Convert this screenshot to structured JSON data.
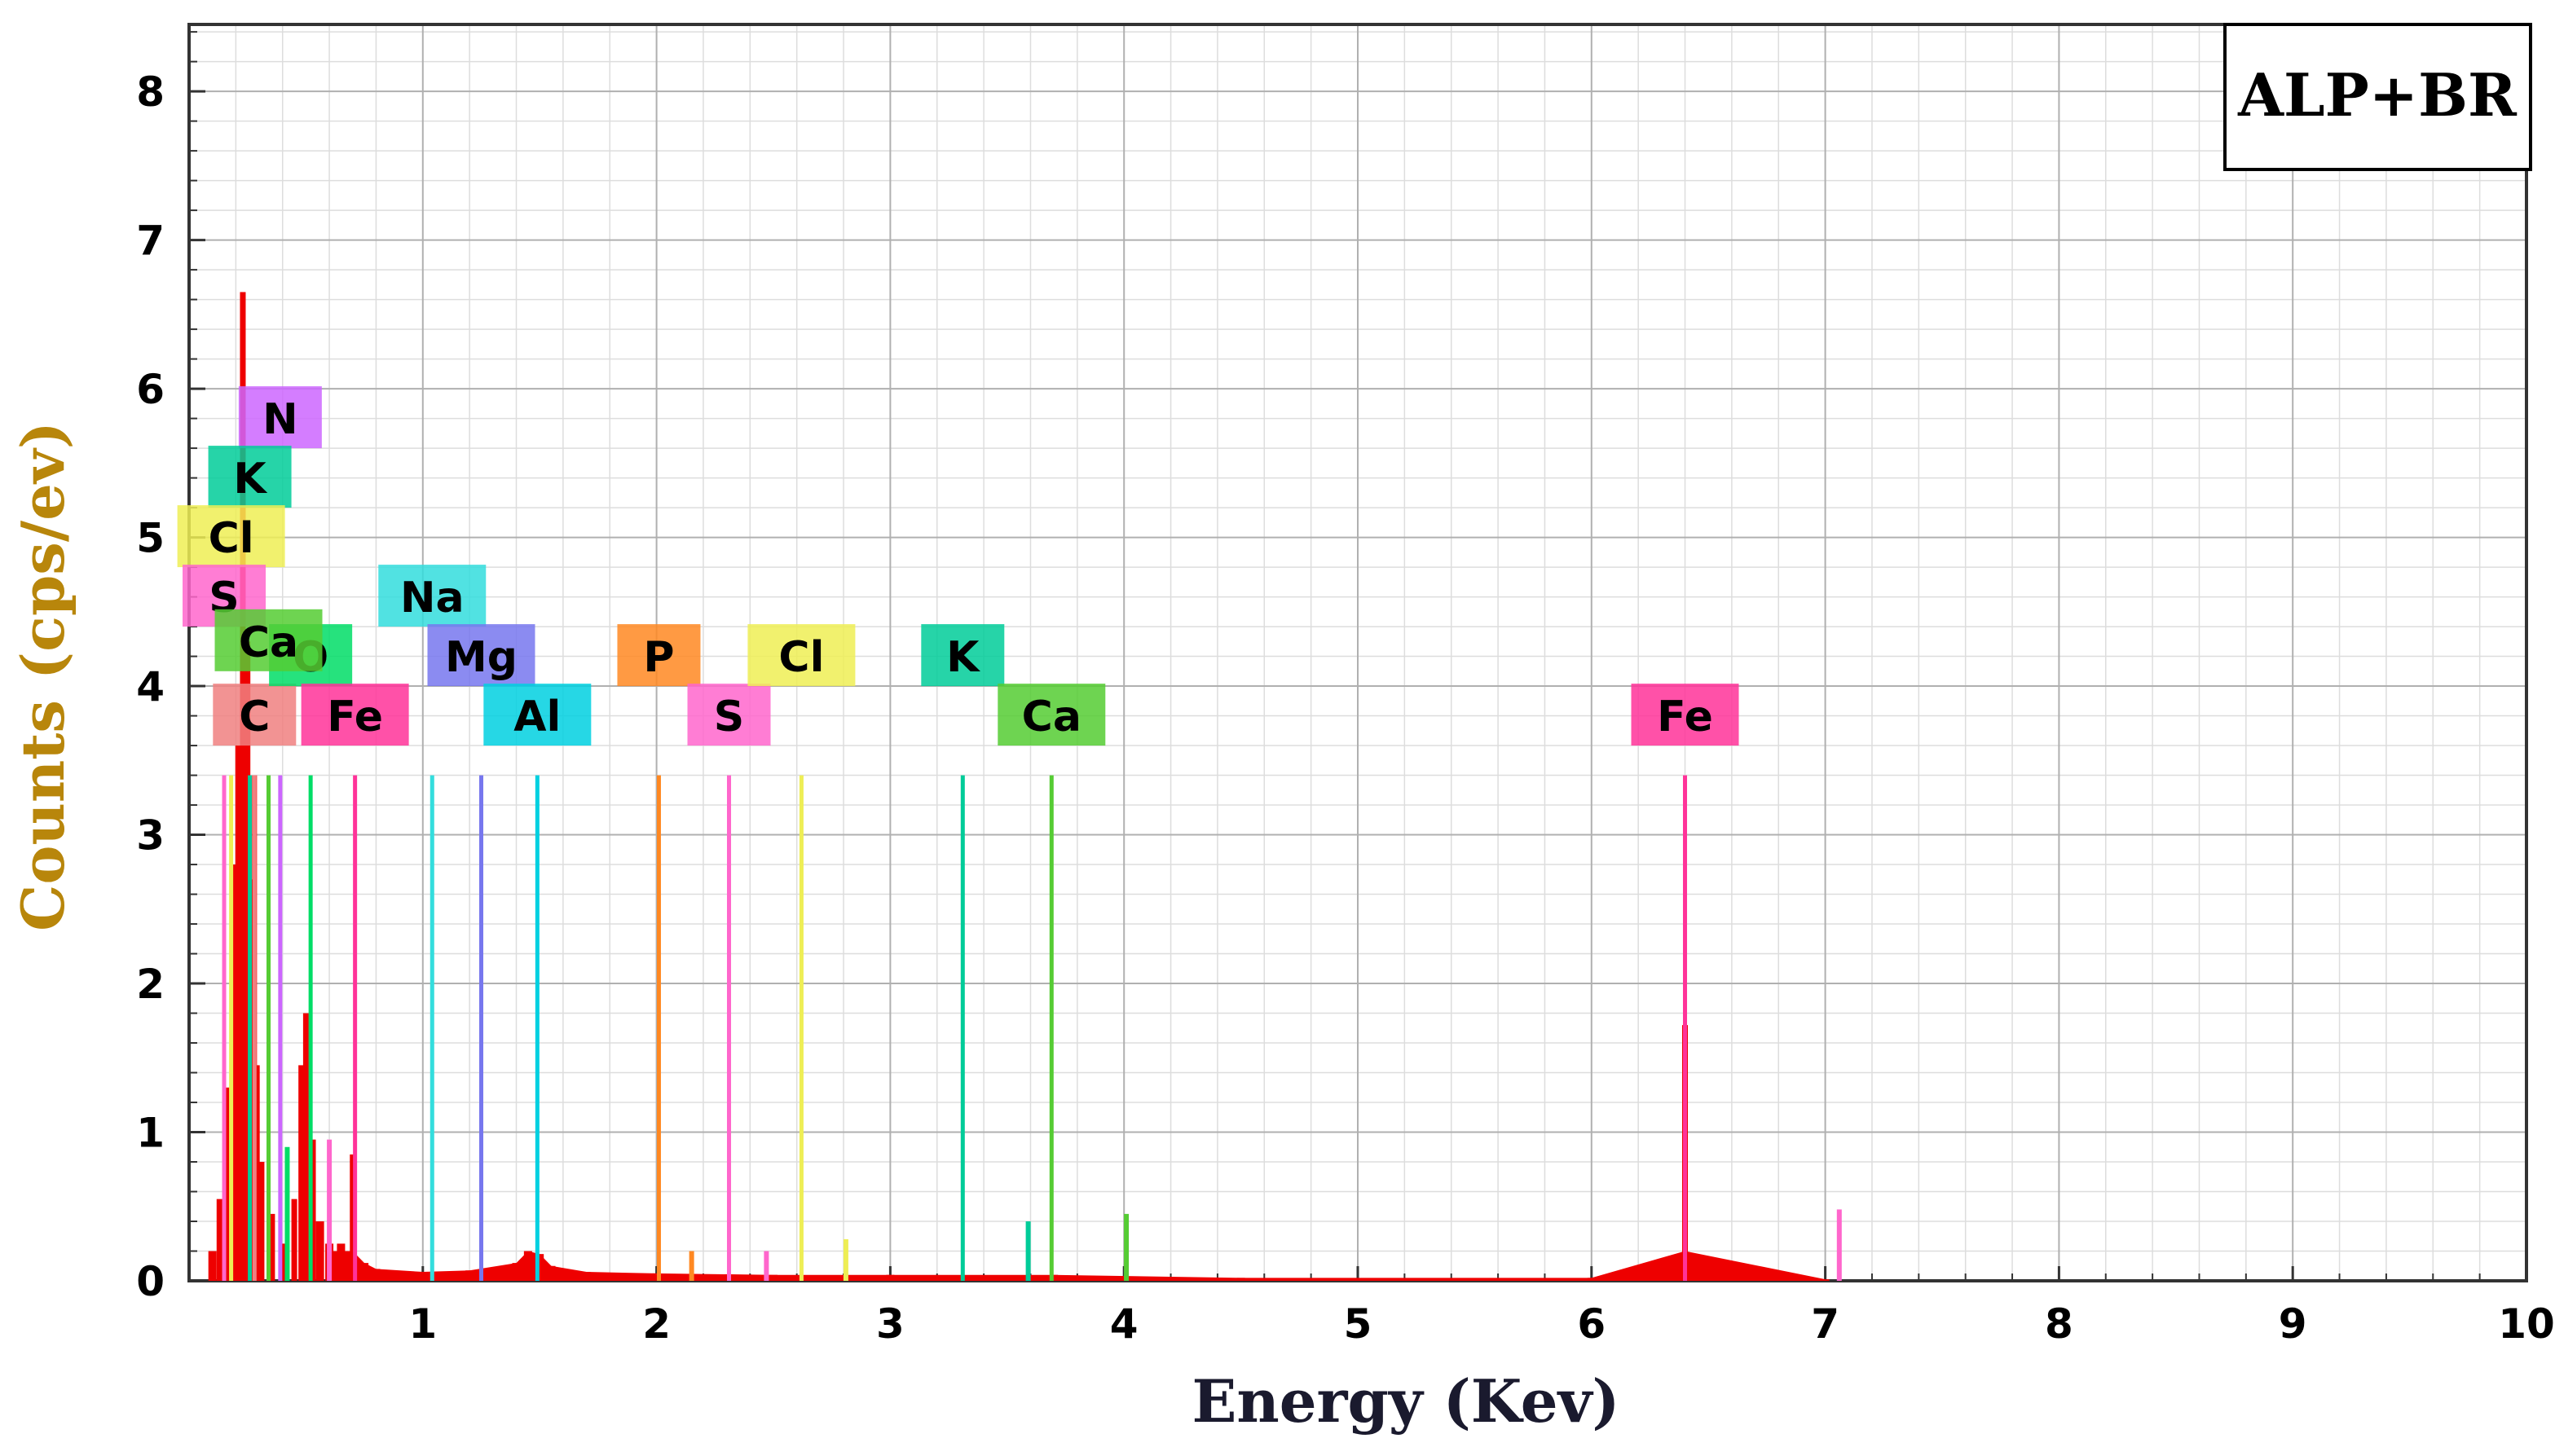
{
  "chart_data": {
    "type": "bar",
    "title": "",
    "legend": "ALP+BR",
    "legend_position": "top-right",
    "xlabel": "Energy (Kev)",
    "ylabel": "Counts (cps/ev)",
    "xlim": [
      0,
      10
    ],
    "ylim": [
      0,
      8.45
    ],
    "grid": true,
    "x_ticks": [
      "1",
      "2",
      "3",
      "4",
      "5",
      "6",
      "7",
      "8",
      "9",
      "10"
    ],
    "y_ticks": [
      "0",
      "1",
      "2",
      "3",
      "4",
      "5",
      "6",
      "7",
      "8"
    ],
    "element_lines": [
      {
        "element": "C",
        "energy": 0.28,
        "color": "#f08080",
        "label_level": 3.6
      },
      {
        "element": "N",
        "energy": 0.39,
        "color": "#cc66ff",
        "label_level": 5.6
      },
      {
        "element": "O",
        "energy": 0.52,
        "color": "#00dd66",
        "label_level": 4.0
      },
      {
        "element": "Fe",
        "energy": 0.71,
        "color": "#ff3399",
        "label_level": 3.6
      },
      {
        "element": "Na",
        "energy": 1.04,
        "color": "#33dddd",
        "label_level": 4.4
      },
      {
        "element": "Mg",
        "energy": 1.25,
        "color": "#7777ee",
        "label_level": 4.0
      },
      {
        "element": "Al",
        "energy": 1.49,
        "color": "#00d0e0",
        "label_level": 3.6
      },
      {
        "element": "P",
        "energy": 2.01,
        "color": "#ff8822",
        "label_level": 4.0
      },
      {
        "element": "S",
        "energy": 2.31,
        "color": "#ff66cc",
        "label_level": 3.6
      },
      {
        "element": "Cl",
        "energy": 2.62,
        "color": "#eeee55",
        "label_level": 4.0
      },
      {
        "element": "K",
        "energy": 3.31,
        "color": "#00cc99",
        "label_level": 4.0
      },
      {
        "element": "Ca",
        "energy": 3.69,
        "color": "#55cc33",
        "label_level": 3.6
      },
      {
        "element": "Fe",
        "energy": 6.4,
        "color": "#ff3399",
        "label_level": 3.6
      },
      {
        "element": "K",
        "energy": 0.26,
        "color": "#00cc99",
        "label_level": 5.2
      },
      {
        "element": "Cl",
        "energy": 0.18,
        "color": "#eeee55",
        "label_level": 4.8
      },
      {
        "element": "S",
        "energy": 0.15,
        "color": "#ff66cc",
        "label_level": 4.4
      },
      {
        "element": "Ca",
        "energy": 0.34,
        "color": "#55cc33",
        "label_level": 4.1
      }
    ],
    "line_height": 3.4,
    "spectrum": [
      {
        "x": 0.1,
        "y": 0.2
      },
      {
        "x": 0.13,
        "y": 0.55
      },
      {
        "x": 0.16,
        "y": 1.3
      },
      {
        "x": 0.19,
        "y": 2.8
      },
      {
        "x": 0.21,
        "y": 3.6
      },
      {
        "x": 0.23,
        "y": 6.65
      },
      {
        "x": 0.25,
        "y": 4.3
      },
      {
        "x": 0.27,
        "y": 2.7
      },
      {
        "x": 0.29,
        "y": 1.45
      },
      {
        "x": 0.31,
        "y": 0.8
      },
      {
        "x": 0.35,
        "y": 0.45
      },
      {
        "x": 0.4,
        "y": 0.25
      },
      {
        "x": 0.45,
        "y": 0.55
      },
      {
        "x": 0.48,
        "y": 1.45
      },
      {
        "x": 0.5,
        "y": 1.8
      },
      {
        "x": 0.53,
        "y": 0.95
      },
      {
        "x": 0.56,
        "y": 0.4
      },
      {
        "x": 0.6,
        "y": 0.25
      },
      {
        "x": 0.65,
        "y": 0.25
      },
      {
        "x": 0.7,
        "y": 0.85
      },
      {
        "x": 0.75,
        "y": 0.12
      },
      {
        "x": 0.8,
        "y": 0.08
      },
      {
        "x": 1.0,
        "y": 0.06
      },
      {
        "x": 1.2,
        "y": 0.07
      },
      {
        "x": 1.4,
        "y": 0.12
      },
      {
        "x": 1.45,
        "y": 0.2
      },
      {
        "x": 1.5,
        "y": 0.18
      },
      {
        "x": 1.55,
        "y": 0.1
      },
      {
        "x": 1.7,
        "y": 0.06
      },
      {
        "x": 2.0,
        "y": 0.05
      },
      {
        "x": 2.5,
        "y": 0.04
      },
      {
        "x": 3.0,
        "y": 0.04
      },
      {
        "x": 3.7,
        "y": 0.04
      },
      {
        "x": 4.5,
        "y": 0.02
      },
      {
        "x": 6.0,
        "y": 0.02
      },
      {
        "x": 6.4,
        "y": 1.72
      },
      {
        "x": 7.0,
        "y": 0.01
      }
    ],
    "minor_lines": [
      {
        "energy": 0.28,
        "height": 3.4,
        "color": "#ff0000"
      },
      {
        "energy": 0.6,
        "height": 0.95,
        "color": "#ff66cc"
      },
      {
        "energy": 2.15,
        "height": 0.2,
        "color": "#ff8822"
      },
      {
        "energy": 2.47,
        "height": 0.2,
        "color": "#ff66cc"
      },
      {
        "energy": 2.81,
        "height": 0.28,
        "color": "#eeee55"
      },
      {
        "energy": 3.59,
        "height": 0.4,
        "color": "#00cc99"
      },
      {
        "energy": 4.01,
        "height": 0.45,
        "color": "#55cc33"
      },
      {
        "energy": 7.06,
        "height": 0.48,
        "color": "#ff66cc"
      },
      {
        "energy": 0.42,
        "height": 0.9,
        "color": "#00dd66"
      }
    ]
  }
}
